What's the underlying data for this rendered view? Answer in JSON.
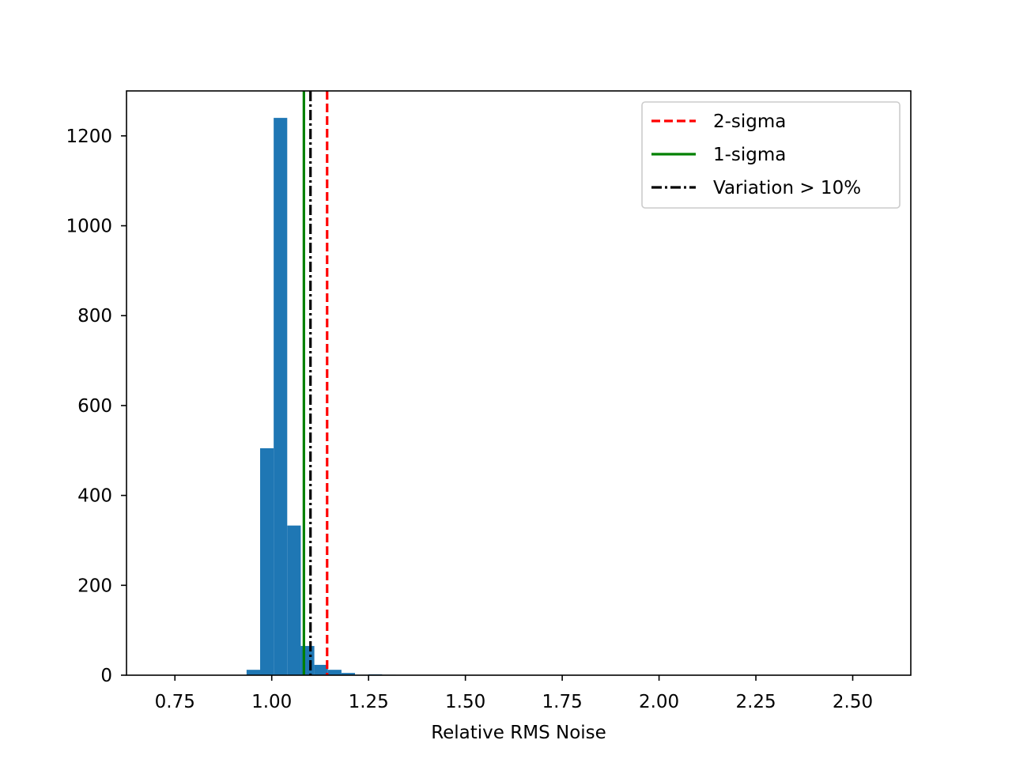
{
  "chart_data": {
    "type": "bar",
    "title": "",
    "xlabel": "Relative RMS Noise",
    "ylabel": "",
    "xlim": [
      0.625,
      2.65
    ],
    "ylim": [
      0,
      1300
    ],
    "x_ticks": [
      0.75,
      1.0,
      1.25,
      1.5,
      1.75,
      2.0,
      2.25,
      2.5
    ],
    "x_tick_labels": [
      "0.75",
      "1.00",
      "1.25",
      "1.50",
      "1.75",
      "2.00",
      "2.25",
      "2.50"
    ],
    "y_ticks": [
      0,
      200,
      400,
      600,
      800,
      1000,
      1200
    ],
    "y_tick_labels": [
      "0",
      "200",
      "400",
      "600",
      "800",
      "1000",
      "1200"
    ],
    "grid": false,
    "bar_color": "#1f77b4",
    "bins": [
      {
        "x0": 0.935,
        "x1": 0.97,
        "count": 12
      },
      {
        "x0": 0.97,
        "x1": 1.005,
        "count": 505
      },
      {
        "x0": 1.005,
        "x1": 1.04,
        "count": 1240
      },
      {
        "x0": 1.04,
        "x1": 1.075,
        "count": 333
      },
      {
        "x0": 1.075,
        "x1": 1.11,
        "count": 65
      },
      {
        "x0": 1.11,
        "x1": 1.145,
        "count": 23
      },
      {
        "x0": 1.145,
        "x1": 1.18,
        "count": 12
      },
      {
        "x0": 1.18,
        "x1": 1.215,
        "count": 5
      },
      {
        "x0": 1.215,
        "x1": 1.25,
        "count": 1
      },
      {
        "x0": 1.25,
        "x1": 1.285,
        "count": 2
      },
      {
        "x0": 1.285,
        "x1": 1.32,
        "count": 1
      }
    ],
    "reference_lines": [
      {
        "name": "2-sigma",
        "x": 1.143,
        "color": "#ff0000",
        "style": "dashed"
      },
      {
        "name": "1-sigma",
        "x": 1.083,
        "color": "#008000",
        "style": "solid"
      },
      {
        "name": "Variation > 10%",
        "x": 1.1,
        "color": "#000000",
        "style": "dashdot"
      }
    ],
    "legend_placement": "top-right"
  }
}
